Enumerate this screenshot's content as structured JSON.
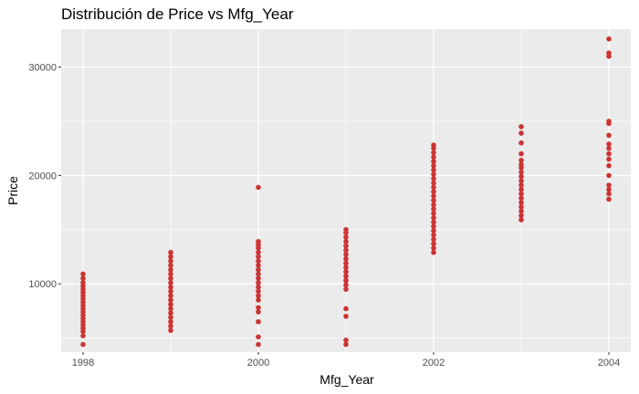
{
  "chart_data": {
    "type": "scatter",
    "title": "Distribución de Price vs Mfg_Year",
    "xlabel": "Mfg_Year",
    "ylabel": "Price",
    "xlim": [
      1997.75,
      2004.25
    ],
    "ylim": [
      3700,
      33500
    ],
    "x_ticks": [
      1998,
      2000,
      2002,
      2004
    ],
    "x_minor_ticks": [
      1999,
      2001,
      2003
    ],
    "y_ticks": [
      10000,
      20000,
      30000
    ],
    "y_minor_ticks": [
      5000,
      15000,
      25000
    ],
    "x_tick_labels": [
      "1998",
      "2000",
      "2002",
      "2004"
    ],
    "y_tick_labels": [
      "10000",
      "20000",
      "30000"
    ],
    "grid": true,
    "colors": {
      "panel_background": "#ebebeb",
      "grid_major": "#ffffff",
      "point": "#cc3333"
    },
    "points": [
      {
        "x": 1998,
        "y": 4400
      },
      {
        "x": 1998,
        "y": 5200
      },
      {
        "x": 1998,
        "y": 5600
      },
      {
        "x": 1998,
        "y": 5900
      },
      {
        "x": 1998,
        "y": 6200
      },
      {
        "x": 1998,
        "y": 6500
      },
      {
        "x": 1998,
        "y": 6800
      },
      {
        "x": 1998,
        "y": 7100
      },
      {
        "x": 1998,
        "y": 7400
      },
      {
        "x": 1998,
        "y": 7700
      },
      {
        "x": 1998,
        "y": 8000
      },
      {
        "x": 1998,
        "y": 8300
      },
      {
        "x": 1998,
        "y": 8600
      },
      {
        "x": 1998,
        "y": 8900
      },
      {
        "x": 1998,
        "y": 9200
      },
      {
        "x": 1998,
        "y": 9500
      },
      {
        "x": 1998,
        "y": 9800
      },
      {
        "x": 1998,
        "y": 10100
      },
      {
        "x": 1998,
        "y": 10500
      },
      {
        "x": 1998,
        "y": 10900
      },
      {
        "x": 1999,
        "y": 5700
      },
      {
        "x": 1999,
        "y": 6100
      },
      {
        "x": 1999,
        "y": 6500
      },
      {
        "x": 1999,
        "y": 6900
      },
      {
        "x": 1999,
        "y": 7300
      },
      {
        "x": 1999,
        "y": 7700
      },
      {
        "x": 1999,
        "y": 8100
      },
      {
        "x": 1999,
        "y": 8500
      },
      {
        "x": 1999,
        "y": 8900
      },
      {
        "x": 1999,
        "y": 9300
      },
      {
        "x": 1999,
        "y": 9700
      },
      {
        "x": 1999,
        "y": 10100
      },
      {
        "x": 1999,
        "y": 10500
      },
      {
        "x": 1999,
        "y": 10900
      },
      {
        "x": 1999,
        "y": 11300
      },
      {
        "x": 1999,
        "y": 11700
      },
      {
        "x": 1999,
        "y": 12100
      },
      {
        "x": 1999,
        "y": 12500
      },
      {
        "x": 1999,
        "y": 12900
      },
      {
        "x": 2000,
        "y": 4400
      },
      {
        "x": 2000,
        "y": 5100
      },
      {
        "x": 2000,
        "y": 6500
      },
      {
        "x": 2000,
        "y": 7400
      },
      {
        "x": 2000,
        "y": 7800
      },
      {
        "x": 2000,
        "y": 8500
      },
      {
        "x": 2000,
        "y": 8900
      },
      {
        "x": 2000,
        "y": 9300
      },
      {
        "x": 2000,
        "y": 9700
      },
      {
        "x": 2000,
        "y": 10100
      },
      {
        "x": 2000,
        "y": 10500
      },
      {
        "x": 2000,
        "y": 10900
      },
      {
        "x": 2000,
        "y": 11300
      },
      {
        "x": 2000,
        "y": 11700
      },
      {
        "x": 2000,
        "y": 12100
      },
      {
        "x": 2000,
        "y": 12500
      },
      {
        "x": 2000,
        "y": 12900
      },
      {
        "x": 2000,
        "y": 13300
      },
      {
        "x": 2000,
        "y": 13600
      },
      {
        "x": 2000,
        "y": 13900
      },
      {
        "x": 2000,
        "y": 18900
      },
      {
        "x": 2001,
        "y": 4400
      },
      {
        "x": 2001,
        "y": 4800
      },
      {
        "x": 2001,
        "y": 7000
      },
      {
        "x": 2001,
        "y": 7700
      },
      {
        "x": 2001,
        "y": 9500
      },
      {
        "x": 2001,
        "y": 9900
      },
      {
        "x": 2001,
        "y": 10300
      },
      {
        "x": 2001,
        "y": 10700
      },
      {
        "x": 2001,
        "y": 11100
      },
      {
        "x": 2001,
        "y": 11500
      },
      {
        "x": 2001,
        "y": 11900
      },
      {
        "x": 2001,
        "y": 12300
      },
      {
        "x": 2001,
        "y": 12700
      },
      {
        "x": 2001,
        "y": 13100
      },
      {
        "x": 2001,
        "y": 13500
      },
      {
        "x": 2001,
        "y": 13900
      },
      {
        "x": 2001,
        "y": 14300
      },
      {
        "x": 2001,
        "y": 14700
      },
      {
        "x": 2001,
        "y": 15000
      },
      {
        "x": 2002,
        "y": 12900
      },
      {
        "x": 2002,
        "y": 13300
      },
      {
        "x": 2002,
        "y": 13700
      },
      {
        "x": 2002,
        "y": 14100
      },
      {
        "x": 2002,
        "y": 14500
      },
      {
        "x": 2002,
        "y": 14900
      },
      {
        "x": 2002,
        "y": 15300
      },
      {
        "x": 2002,
        "y": 15700
      },
      {
        "x": 2002,
        "y": 16100
      },
      {
        "x": 2002,
        "y": 16500
      },
      {
        "x": 2002,
        "y": 16900
      },
      {
        "x": 2002,
        "y": 17300
      },
      {
        "x": 2002,
        "y": 17700
      },
      {
        "x": 2002,
        "y": 18100
      },
      {
        "x": 2002,
        "y": 18500
      },
      {
        "x": 2002,
        "y": 18900
      },
      {
        "x": 2002,
        "y": 19300
      },
      {
        "x": 2002,
        "y": 19700
      },
      {
        "x": 2002,
        "y": 20100
      },
      {
        "x": 2002,
        "y": 20500
      },
      {
        "x": 2002,
        "y": 20900
      },
      {
        "x": 2002,
        "y": 21300
      },
      {
        "x": 2002,
        "y": 21700
      },
      {
        "x": 2002,
        "y": 22100
      },
      {
        "x": 2002,
        "y": 22500
      },
      {
        "x": 2002,
        "y": 22800
      },
      {
        "x": 2003,
        "y": 15900
      },
      {
        "x": 2003,
        "y": 16300
      },
      {
        "x": 2003,
        "y": 16700
      },
      {
        "x": 2003,
        "y": 17100
      },
      {
        "x": 2003,
        "y": 17500
      },
      {
        "x": 2003,
        "y": 17900
      },
      {
        "x": 2003,
        "y": 18300
      },
      {
        "x": 2003,
        "y": 18700
      },
      {
        "x": 2003,
        "y": 19100
      },
      {
        "x": 2003,
        "y": 19500
      },
      {
        "x": 2003,
        "y": 19900
      },
      {
        "x": 2003,
        "y": 20300
      },
      {
        "x": 2003,
        "y": 20700
      },
      {
        "x": 2003,
        "y": 21000
      },
      {
        "x": 2003,
        "y": 21400
      },
      {
        "x": 2003,
        "y": 22000
      },
      {
        "x": 2003,
        "y": 23000
      },
      {
        "x": 2003,
        "y": 23900
      },
      {
        "x": 2003,
        "y": 24500
      },
      {
        "x": 2004,
        "y": 17800
      },
      {
        "x": 2004,
        "y": 18300
      },
      {
        "x": 2004,
        "y": 18700
      },
      {
        "x": 2004,
        "y": 19100
      },
      {
        "x": 2004,
        "y": 20000
      },
      {
        "x": 2004,
        "y": 20900
      },
      {
        "x": 2004,
        "y": 21500
      },
      {
        "x": 2004,
        "y": 22000
      },
      {
        "x": 2004,
        "y": 22500
      },
      {
        "x": 2004,
        "y": 22900
      },
      {
        "x": 2004,
        "y": 23700
      },
      {
        "x": 2004,
        "y": 24800
      },
      {
        "x": 2004,
        "y": 25000
      },
      {
        "x": 2004,
        "y": 31000
      },
      {
        "x": 2004,
        "y": 31300
      },
      {
        "x": 2004,
        "y": 32600
      }
    ]
  }
}
